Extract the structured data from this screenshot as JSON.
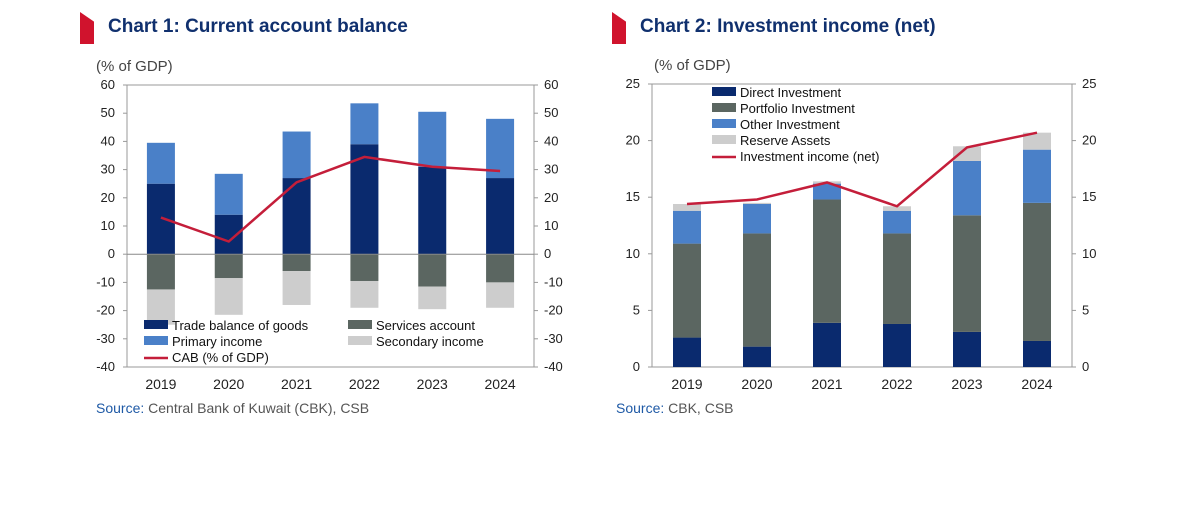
{
  "chart_data": [
    {
      "id": "chart1",
      "type": "bar",
      "stacked": true,
      "title": "Chart 1: Current account balance",
      "unit_label": "(% of GDP)",
      "source_label": "Source:",
      "source_text": "Central Bank of Kuwait (CBK), CSB",
      "categories": [
        "2019",
        "2020",
        "2021",
        "2022",
        "2023",
        "2024"
      ],
      "ylim": [
        -40,
        60
      ],
      "yticks": [
        -40,
        -30,
        -20,
        -10,
        0,
        10,
        20,
        30,
        40,
        50,
        60
      ],
      "series": [
        {
          "name": "Trade balance of goods",
          "kind": "bar",
          "color": "#0a2a6e",
          "values": [
            25,
            14,
            27,
            39,
            31,
            27
          ]
        },
        {
          "name": "Services account",
          "kind": "bar",
          "color": "#5b6661",
          "values": [
            -12.5,
            -8.5,
            -6,
            -9.5,
            -11.5,
            -10
          ]
        },
        {
          "name": "Primary income",
          "kind": "bar",
          "color": "#4a80c8",
          "values": [
            14.5,
            14.5,
            16.5,
            14.5,
            19.5,
            21
          ]
        },
        {
          "name": "Secondary income",
          "kind": "bar",
          "color": "#cdcdcd",
          "values": [
            -12.5,
            -13,
            -12,
            -9.5,
            -8,
            -9
          ]
        },
        {
          "name": "CAB (% of GDP)",
          "kind": "line",
          "color": "#c41e3a",
          "values": [
            13,
            4.5,
            25.5,
            34.5,
            31,
            29.5
          ]
        }
      ]
    },
    {
      "id": "chart2",
      "type": "bar",
      "stacked": true,
      "title": "Chart 2: Investment income (net)",
      "unit_label": "(% of GDP)",
      "source_label": "Source:",
      "source_text": "CBK, CSB",
      "categories": [
        "2019",
        "2020",
        "2021",
        "2022",
        "2023",
        "2024"
      ],
      "ylim": [
        0,
        25
      ],
      "yticks": [
        0,
        5,
        10,
        15,
        20,
        25
      ],
      "series": [
        {
          "name": "Direct Investment",
          "kind": "bar",
          "color": "#0a2a6e",
          "values": [
            2.6,
            1.8,
            3.9,
            3.8,
            3.1,
            2.3
          ]
        },
        {
          "name": "Portfolio Investment",
          "kind": "bar",
          "color": "#5b6661",
          "values": [
            8.3,
            10.0,
            10.9,
            8.0,
            10.3,
            12.2
          ]
        },
        {
          "name": "Other Investment",
          "kind": "bar",
          "color": "#4a80c8",
          "values": [
            2.9,
            2.6,
            1.4,
            2.0,
            4.8,
            4.7
          ]
        },
        {
          "name": "Reserve Assets",
          "kind": "bar",
          "color": "#cdcdcd",
          "values": [
            0.6,
            0.1,
            0.2,
            0.4,
            1.3,
            1.5
          ]
        },
        {
          "name": "Investment income (net)",
          "kind": "line",
          "color": "#c41e3a",
          "values": [
            14.4,
            14.8,
            16.3,
            14.2,
            19.4,
            20.7
          ]
        }
      ]
    }
  ]
}
